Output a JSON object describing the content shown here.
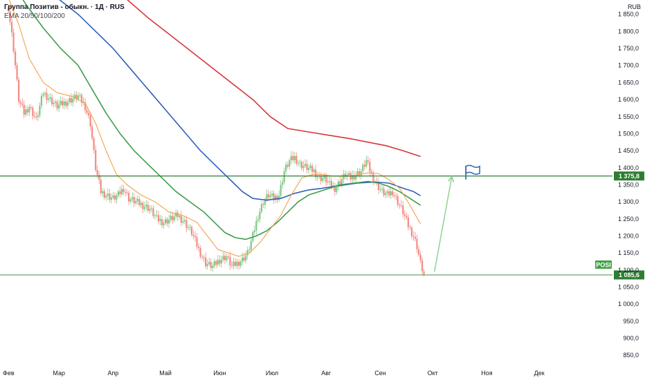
{
  "header": {
    "title": "Группа Позитив - обыкн. · 1Д · RUS",
    "indicator": "EMA 20/50/100/200",
    "currency": "RUB"
  },
  "colors": {
    "ema20": "#f4a04a",
    "ema50": "#3e9c4e",
    "ema100": "#2f5fb8",
    "ema200": "#d7343c",
    "level_line": "#2e7d32",
    "up": "#81c784",
    "down": "#f28b82",
    "arrow": "#8fd196",
    "flag": "#2f6fb8"
  },
  "chart_data": {
    "type": "candlestick",
    "ylim": [
      820,
      1920
    ],
    "y_ticks": [
      "1 850,0",
      "1 800,0",
      "1 750,0",
      "1 700,0",
      "1 650,0",
      "1 600,0",
      "1 550,0",
      "1 500,0",
      "1 450,0",
      "1 400,0",
      "1 350,0",
      "1 300,0",
      "1 250,0",
      "1 200,0",
      "1 150,0",
      "1 100,0",
      "1 050,0",
      "1 000,0",
      "950,0",
      "900,0",
      "850,0"
    ],
    "y_tick_values": [
      1850,
      1800,
      1750,
      1700,
      1650,
      1600,
      1550,
      1500,
      1450,
      1400,
      1350,
      1300,
      1250,
      1200,
      1150,
      1100,
      1050,
      1000,
      950,
      900,
      850
    ],
    "x_ticks": [
      "Фев",
      "Мар",
      "Апр",
      "Май",
      "Июн",
      "Июл",
      "Авг",
      "Сен",
      "Окт",
      "Ноя",
      "Дек"
    ],
    "x_tick_days": [
      0,
      29,
      60,
      90,
      121,
      151,
      182,
      213,
      243,
      274,
      304
    ],
    "x_range_days": [
      0,
      340
    ],
    "close_by_day": [
      [
        0,
        1870
      ],
      [
        3,
        1750
      ],
      [
        6,
        1600
      ],
      [
        9,
        1560
      ],
      [
        12,
        1580
      ],
      [
        16,
        1540
      ],
      [
        20,
        1620
      ],
      [
        24,
        1600
      ],
      [
        28,
        1580
      ],
      [
        32,
        1590
      ],
      [
        36,
        1600
      ],
      [
        40,
        1610
      ],
      [
        44,
        1580
      ],
      [
        47,
        1530
      ],
      [
        50,
        1400
      ],
      [
        53,
        1330
      ],
      [
        56,
        1320
      ],
      [
        60,
        1310
      ],
      [
        63,
        1320
      ],
      [
        66,
        1340
      ],
      [
        69,
        1310
      ],
      [
        73,
        1300
      ],
      [
        77,
        1290
      ],
      [
        81,
        1280
      ],
      [
        85,
        1250
      ],
      [
        89,
        1240
      ],
      [
        93,
        1250
      ],
      [
        97,
        1260
      ],
      [
        101,
        1240
      ],
      [
        105,
        1210
      ],
      [
        109,
        1160
      ],
      [
        113,
        1120
      ],
      [
        117,
        1110
      ],
      [
        121,
        1130
      ],
      [
        125,
        1140
      ],
      [
        128,
        1110
      ],
      [
        131,
        1120
      ],
      [
        134,
        1130
      ],
      [
        137,
        1150
      ],
      [
        140,
        1200
      ],
      [
        143,
        1260
      ],
      [
        146,
        1300
      ],
      [
        149,
        1320
      ],
      [
        152,
        1310
      ],
      [
        155,
        1320
      ],
      [
        158,
        1390
      ],
      [
        161,
        1420
      ],
      [
        164,
        1430
      ],
      [
        167,
        1410
      ],
      [
        171,
        1400
      ],
      [
        175,
        1390
      ],
      [
        178,
        1370
      ],
      [
        181,
        1370
      ],
      [
        184,
        1350
      ],
      [
        187,
        1340
      ],
      [
        190,
        1360
      ],
      [
        193,
        1380
      ],
      [
        196,
        1370
      ],
      [
        199,
        1380
      ],
      [
        202,
        1390
      ],
      [
        205,
        1420
      ],
      [
        208,
        1380
      ],
      [
        211,
        1350
      ],
      [
        214,
        1330
      ],
      [
        217,
        1320
      ],
      [
        220,
        1330
      ],
      [
        223,
        1300
      ],
      [
        226,
        1270
      ],
      [
        229,
        1230
      ],
      [
        232,
        1200
      ],
      [
        234,
        1170
      ],
      [
        236,
        1120
      ],
      [
        238,
        1086
      ]
    ],
    "ema20_by_day": [
      [
        0,
        1900
      ],
      [
        6,
        1820
      ],
      [
        12,
        1720
      ],
      [
        20,
        1650
      ],
      [
        28,
        1620
      ],
      [
        36,
        1610
      ],
      [
        44,
        1590
      ],
      [
        50,
        1530
      ],
      [
        56,
        1450
      ],
      [
        62,
        1380
      ],
      [
        68,
        1350
      ],
      [
        76,
        1320
      ],
      [
        84,
        1300
      ],
      [
        92,
        1270
      ],
      [
        100,
        1260
      ],
      [
        108,
        1240
      ],
      [
        114,
        1200
      ],
      [
        120,
        1160
      ],
      [
        126,
        1150
      ],
      [
        132,
        1140
      ],
      [
        138,
        1150
      ],
      [
        144,
        1180
      ],
      [
        150,
        1220
      ],
      [
        156,
        1260
      ],
      [
        162,
        1320
      ],
      [
        168,
        1370
      ],
      [
        174,
        1380
      ],
      [
        180,
        1380
      ],
      [
        186,
        1375
      ],
      [
        192,
        1375
      ],
      [
        200,
        1378
      ],
      [
        206,
        1385
      ],
      [
        212,
        1383
      ],
      [
        218,
        1365
      ],
      [
        224,
        1340
      ],
      [
        230,
        1290
      ],
      [
        236,
        1235
      ]
    ],
    "ema50_by_day": [
      [
        0,
        1960
      ],
      [
        10,
        1880
      ],
      [
        20,
        1810
      ],
      [
        30,
        1750
      ],
      [
        40,
        1700
      ],
      [
        48,
        1630
      ],
      [
        56,
        1560
      ],
      [
        64,
        1500
      ],
      [
        72,
        1450
      ],
      [
        80,
        1410
      ],
      [
        88,
        1370
      ],
      [
        96,
        1330
      ],
      [
        104,
        1300
      ],
      [
        112,
        1270
      ],
      [
        118,
        1240
      ],
      [
        124,
        1210
      ],
      [
        130,
        1195
      ],
      [
        136,
        1190
      ],
      [
        142,
        1200
      ],
      [
        148,
        1215
      ],
      [
        154,
        1240
      ],
      [
        160,
        1270
      ],
      [
        166,
        1300
      ],
      [
        172,
        1320
      ],
      [
        178,
        1330
      ],
      [
        184,
        1340
      ],
      [
        190,
        1350
      ],
      [
        198,
        1355
      ],
      [
        206,
        1360
      ],
      [
        212,
        1355
      ],
      [
        218,
        1345
      ],
      [
        224,
        1330
      ],
      [
        230,
        1310
      ],
      [
        236,
        1290
      ]
    ],
    "ema100_by_day": [
      [
        20,
        1930
      ],
      [
        30,
        1890
      ],
      [
        40,
        1850
      ],
      [
        50,
        1800
      ],
      [
        60,
        1750
      ],
      [
        70,
        1690
      ],
      [
        80,
        1630
      ],
      [
        90,
        1570
      ],
      [
        100,
        1510
      ],
      [
        110,
        1450
      ],
      [
        120,
        1400
      ],
      [
        128,
        1360
      ],
      [
        134,
        1330
      ],
      [
        140,
        1310
      ],
      [
        148,
        1305
      ],
      [
        156,
        1310
      ],
      [
        164,
        1325
      ],
      [
        172,
        1335
      ],
      [
        180,
        1340
      ],
      [
        190,
        1348
      ],
      [
        200,
        1355
      ],
      [
        210,
        1358
      ],
      [
        218,
        1355
      ],
      [
        226,
        1340
      ],
      [
        232,
        1330
      ],
      [
        236,
        1318
      ]
    ],
    "ema200_by_day": [
      [
        62,
        1920
      ],
      [
        80,
        1840
      ],
      [
        100,
        1760
      ],
      [
        120,
        1680
      ],
      [
        140,
        1600
      ],
      [
        150,
        1550
      ],
      [
        160,
        1515
      ],
      [
        172,
        1505
      ],
      [
        184,
        1495
      ],
      [
        196,
        1485
      ],
      [
        206,
        1475
      ],
      [
        216,
        1465
      ],
      [
        226,
        1450
      ],
      [
        232,
        1440
      ],
      [
        236,
        1433
      ]
    ],
    "horizontal_levels": [
      {
        "value": 1375.8,
        "label": "1 375,8"
      },
      {
        "value": 1085.6,
        "label": "1 085,6"
      }
    ],
    "price_badge": "POSI",
    "arrow_from": [
      244,
      1095
    ],
    "arrow_to": [
      254,
      1375
    ],
    "flag_at": [
      262,
      1398
    ]
  }
}
